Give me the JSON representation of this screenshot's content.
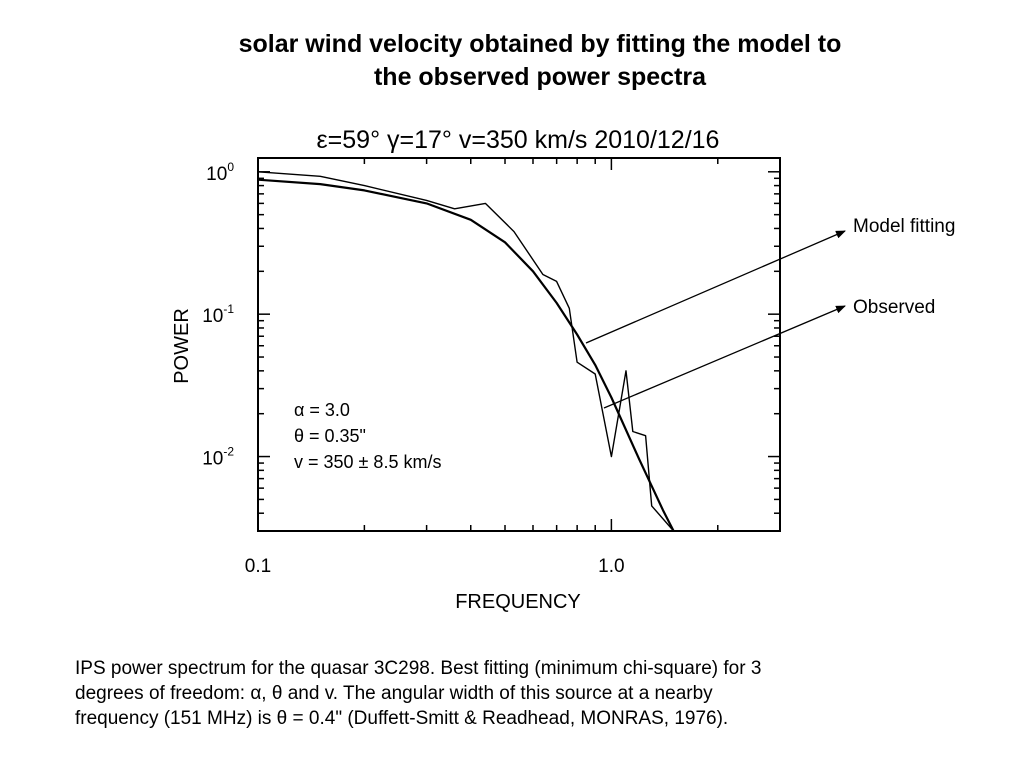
{
  "slide": {
    "title_line1": "solar wind velocity obtained by fitting the model to",
    "title_line2": "the observed power spectra",
    "caption_line1": "IPS power spectrum for the quasar 3C298. Best fitting (minimum chi-square) for 3",
    "caption_line2": "degrees of freedom: α, θ and v.  The angular width of this source at a nearby",
    "caption_line3": "frequency (151 MHz) is θ = 0.4\" (Duffett-Smitt & Readhead, MONRAS, 1976)."
  },
  "chart_data": {
    "type": "line",
    "header": "ε=59°  γ=17°  v=350 km/s   2010/12/16",
    "xlabel": "FREQUENCY",
    "ylabel": "POWER",
    "x_scale": "log",
    "y_scale": "log",
    "xlim": [
      0.1,
      3.0
    ],
    "ylim": [
      0.003,
      1.25
    ],
    "x_tick_labels": [
      "0.1",
      "1.0"
    ],
    "y_tick_labels": [
      "10^0",
      "10^-1",
      "10^-2"
    ],
    "fit_params": [
      "α  = 3.0",
      "θ  = 0.35\"",
      "v  = 350 ± 8.5 km/s"
    ],
    "annotations": [
      "Model fitting",
      "Observed"
    ],
    "series": [
      {
        "name": "Model fitting",
        "x": [
          0.1,
          0.15,
          0.2,
          0.3,
          0.4,
          0.5,
          0.6,
          0.7,
          0.8,
          0.9,
          1.0,
          1.2,
          1.4,
          1.5
        ],
        "y": [
          0.88,
          0.82,
          0.74,
          0.6,
          0.46,
          0.32,
          0.2,
          0.12,
          0.072,
          0.044,
          0.026,
          0.0095,
          0.0042,
          0.003
        ]
      },
      {
        "name": "Observed",
        "x": [
          0.1,
          0.15,
          0.2,
          0.3,
          0.36,
          0.44,
          0.53,
          0.64,
          0.7,
          0.76,
          0.8,
          0.9,
          1.0,
          1.1,
          1.15,
          1.25,
          1.3,
          1.5
        ],
        "y": [
          1.0,
          0.93,
          0.8,
          0.63,
          0.55,
          0.6,
          0.38,
          0.19,
          0.17,
          0.11,
          0.046,
          0.038,
          0.01,
          0.04,
          0.015,
          0.014,
          0.0045,
          0.003
        ]
      }
    ]
  }
}
